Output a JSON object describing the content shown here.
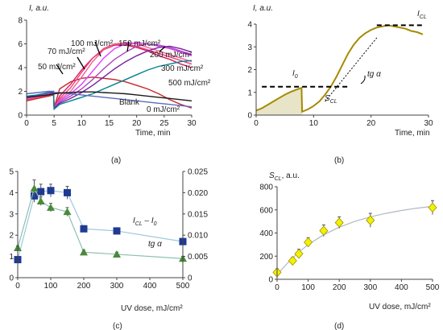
{
  "panels": [
    {
      "label": "(a)"
    },
    {
      "label": "(b)"
    },
    {
      "label": "(c)"
    },
    {
      "label": "(d)"
    }
  ],
  "chart_data": [
    {
      "panel": "a",
      "type": "line",
      "ylabel": "I, a.u.",
      "xlabel": "Time, min",
      "xlim": [
        0,
        30
      ],
      "ylim": [
        0,
        8
      ],
      "xticks": [
        0,
        5,
        10,
        15,
        20,
        25,
        30
      ],
      "yticks": [
        0,
        2,
        4,
        6,
        8
      ],
      "annotations": [
        "100 mJ/cm²",
        "150 mJ/cm²",
        "70 mJ/cm²",
        "200 mJ/cm²",
        "50 mJ/cm²",
        "300 mJ/cm²",
        "500 mJ/cm²",
        "Blank",
        "0 mJ/cm²"
      ],
      "series": [
        {
          "color": "#c62828",
          "x": [
            0,
            2,
            4,
            4.9,
            5,
            6,
            8,
            10,
            12,
            14,
            16,
            18,
            20,
            22,
            24,
            26,
            28,
            30
          ],
          "y": [
            1.2,
            1.4,
            1.6,
            1.7,
            0.6,
            2.2,
            2.8,
            3.1,
            3.2,
            3.1,
            3.0,
            2.8,
            2.5,
            2.2,
            1.8,
            1.3,
            0.9,
            0.6
          ]
        },
        {
          "color": "#d81b60",
          "x": [
            0,
            2,
            4,
            4.9,
            5,
            6,
            8,
            10,
            12,
            14,
            16,
            18,
            20,
            22,
            24,
            26,
            28,
            30
          ],
          "y": [
            1.3,
            1.5,
            1.7,
            1.8,
            0.6,
            1.6,
            2.6,
            3.8,
            4.8,
            5.5,
            5.9,
            5.9,
            5.7,
            5.4,
            5.0,
            4.7,
            4.3,
            4.0
          ]
        },
        {
          "color": "#ec407a",
          "x": [
            0,
            2,
            4,
            4.9,
            5,
            6,
            8,
            10,
            12,
            14,
            16,
            18,
            20,
            22,
            24,
            26,
            28,
            30
          ],
          "y": [
            1.3,
            1.5,
            1.7,
            1.8,
            0.6,
            1.4,
            2.3,
            3.6,
            4.8,
            5.6,
            6.0,
            6.0,
            5.8,
            5.5,
            5.2,
            4.9,
            4.6,
            4.3
          ]
        },
        {
          "color": "#f06292",
          "x": [
            0,
            2,
            4,
            4.9,
            5,
            6,
            8,
            10,
            12,
            14,
            16,
            18,
            20,
            22,
            24,
            26,
            28,
            30
          ],
          "y": [
            1.4,
            1.6,
            1.8,
            1.8,
            0.6,
            1.3,
            2.0,
            3.2,
            4.5,
            5.5,
            6.0,
            6.1,
            6.0,
            5.7,
            5.4,
            5.1,
            4.8,
            4.5
          ]
        },
        {
          "color": "#e040fb",
          "x": [
            0,
            2,
            4,
            4.9,
            5,
            6,
            8,
            10,
            12,
            14,
            16,
            18,
            20,
            22,
            24,
            26,
            28,
            30
          ],
          "y": [
            1.4,
            1.6,
            1.8,
            1.9,
            0.6,
            1.2,
            1.8,
            2.6,
            3.7,
            4.8,
            5.6,
            6.0,
            6.1,
            6.0,
            5.8,
            5.6,
            5.3,
            5.0
          ]
        },
        {
          "color": "#ab47bc",
          "x": [
            0,
            2,
            4,
            4.9,
            5,
            6,
            8,
            10,
            12,
            14,
            16,
            18,
            20,
            22,
            24,
            26,
            28,
            30
          ],
          "y": [
            1.5,
            1.7,
            1.8,
            1.9,
            0.6,
            1.1,
            1.6,
            2.2,
            3.0,
            3.9,
            4.7,
            5.3,
            5.8,
            6.0,
            5.9,
            5.7,
            5.4,
            5.1
          ]
        },
        {
          "color": "#7b1fa2",
          "x": [
            0,
            2,
            4,
            4.9,
            5,
            6,
            8,
            10,
            12,
            14,
            16,
            18,
            20,
            22,
            24,
            26,
            28,
            30
          ],
          "y": [
            1.5,
            1.7,
            1.9,
            1.9,
            0.6,
            1.0,
            1.4,
            1.9,
            2.5,
            3.2,
            3.9,
            4.5,
            5.0,
            5.4,
            5.7,
            5.8,
            5.6,
            5.3
          ]
        },
        {
          "color": "#00838f",
          "x": [
            0,
            2,
            4,
            4.9,
            5,
            6,
            8,
            10,
            12,
            14,
            16,
            18,
            20,
            22,
            24,
            26,
            28,
            30
          ],
          "y": [
            1.6,
            1.7,
            1.9,
            2.0,
            0.5,
            0.9,
            1.2,
            1.5,
            1.8,
            2.2,
            2.6,
            3.0,
            3.4,
            3.8,
            4.1,
            4.3,
            4.5,
            4.6
          ]
        },
        {
          "color": "#5c6bc0",
          "x": [
            0,
            2,
            4,
            4.9,
            5,
            6,
            8,
            10,
            12,
            14,
            16,
            18,
            20,
            22,
            24,
            26,
            28,
            30
          ],
          "y": [
            1.8,
            1.9,
            2.0,
            2.0,
            1.9,
            1.9,
            1.8,
            1.7,
            1.6,
            1.5,
            1.4,
            1.3,
            1.2,
            1.1,
            1.0,
            0.9,
            0.8,
            0.7
          ]
        },
        {
          "color": "#1a1a1a",
          "x": [
            0,
            2,
            4,
            5,
            6,
            8,
            10,
            12,
            14,
            16,
            18,
            20,
            22,
            24,
            26,
            28,
            30
          ],
          "y": [
            1.5,
            1.6,
            1.7,
            1.8,
            1.85,
            1.9,
            1.95,
            1.95,
            1.9,
            1.85,
            1.8,
            1.7,
            1.6,
            1.5,
            1.4,
            1.3,
            1.2
          ]
        }
      ]
    },
    {
      "panel": "b",
      "type": "line",
      "ylabel": "I, a.u.",
      "xlabel": "Time, min",
      "xlim": [
        0,
        30
      ],
      "ylim": [
        0,
        4
      ],
      "xticks": [
        0,
        10,
        20,
        30
      ],
      "yticks": [
        0,
        1,
        2,
        3,
        4
      ],
      "annotations": {
        "i0": "I",
        "i0_sub": "0",
        "icl": "I",
        "icl_sub": "CL",
        "scl": "S",
        "scl_sub": "CL",
        "tg": "tg α"
      },
      "levels": {
        "i0": 1.25,
        "icl": 3.95
      },
      "series": [
        {
          "color": "#a68a00",
          "x": [
            0,
            1,
            2,
            3,
            4,
            5,
            6,
            7,
            7.9,
            8,
            9,
            10,
            11,
            12,
            13,
            14,
            15,
            16,
            17,
            18,
            19,
            20,
            21,
            22,
            23,
            24,
            25,
            26,
            27,
            28,
            29
          ],
          "y": [
            0.2,
            0.3,
            0.45,
            0.6,
            0.75,
            0.9,
            1.02,
            1.12,
            1.2,
            0.15,
            0.25,
            0.4,
            0.6,
            0.9,
            1.25,
            1.7,
            2.2,
            2.7,
            3.1,
            3.4,
            3.6,
            3.75,
            3.85,
            3.9,
            3.95,
            3.9,
            3.85,
            3.8,
            3.7,
            3.65,
            3.55
          ]
        }
      ]
    },
    {
      "panel": "c",
      "type": "scatter",
      "xlabel": "UV dose, mJ/cm²",
      "xlim": [
        0,
        500
      ],
      "ylim": [
        0,
        5
      ],
      "y2lim": [
        0,
        0.025
      ],
      "xticks": [
        0,
        100,
        200,
        300,
        400,
        500
      ],
      "yticks": [
        0,
        1,
        2,
        3,
        4,
        5
      ],
      "y2ticks": [
        "0",
        "0.005",
        "0.010",
        "0.015",
        "0.020",
        "0.025"
      ],
      "annotations": {
        "icl": "I",
        "icl_sub": "CL",
        "minus": " – I",
        "i0_sub": "0",
        "tg": "tg α"
      },
      "series": [
        {
          "axis": "left",
          "color": "#1f3a93",
          "marker": "square",
          "x": [
            0,
            50,
            70,
            100,
            150,
            200,
            300,
            500
          ],
          "y": [
            0.85,
            3.85,
            4.05,
            4.1,
            4.0,
            2.3,
            2.2,
            1.7
          ],
          "err": [
            0.1,
            0.3,
            0.35,
            0.3,
            0.3,
            0.15,
            0.15,
            0.15
          ]
        },
        {
          "axis": "right",
          "color": "#4a8a3a",
          "marker": "triangle",
          "x": [
            0,
            50,
            70,
            100,
            150,
            200,
            300,
            500
          ],
          "y": [
            0.007,
            0.021,
            0.018,
            0.0165,
            0.0155,
            0.006,
            0.0055,
            0.0045
          ],
          "err": [
            0.0005,
            0.002,
            0.001,
            0.001,
            0.001,
            0.0005,
            0.0005,
            0.0005
          ]
        }
      ]
    },
    {
      "panel": "d",
      "type": "scatter",
      "ylabel": "S",
      "ylabel_sub": "CL",
      "ylabel_tail": ", a.u.",
      "xlabel": "UV dose, mJ/cm²",
      "xlim": [
        0,
        500
      ],
      "ylim": [
        0,
        800
      ],
      "xticks": [
        0,
        100,
        200,
        300,
        400,
        500
      ],
      "yticks": [
        0,
        200,
        400,
        600,
        800
      ],
      "series": [
        {
          "color": "#f5f000",
          "marker": "diamond",
          "x": [
            0,
            50,
            70,
            100,
            150,
            200,
            300,
            500
          ],
          "y": [
            60,
            160,
            220,
            320,
            420,
            490,
            510,
            620
          ],
          "err": [
            30,
            30,
            40,
            40,
            50,
            50,
            60,
            60
          ]
        },
        {
          "color": "#b0b8c0",
          "type": "fit",
          "x": [
            0,
            25,
            50,
            75,
            100,
            150,
            200,
            250,
            300,
            350,
            400,
            450,
            500
          ],
          "y": [
            40,
            115,
            185,
            245,
            300,
            385,
            450,
            500,
            540,
            570,
            595,
            615,
            630
          ]
        }
      ]
    }
  ]
}
